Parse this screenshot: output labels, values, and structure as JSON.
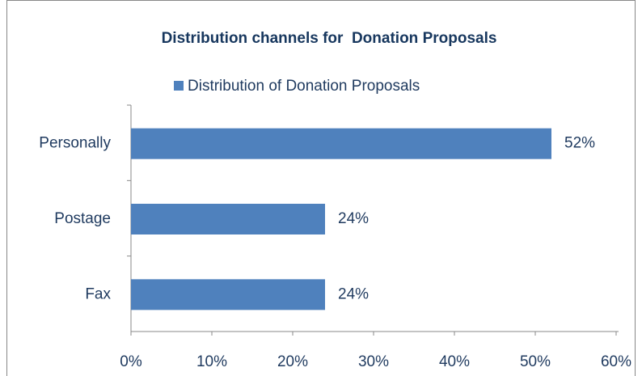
{
  "chart_data": {
    "type": "bar",
    "orientation": "horizontal",
    "title": "Distribution channels for  Donation Proposals",
    "categories": [
      "Personally",
      "Postage",
      "Fax"
    ],
    "series": [
      {
        "name": "Distribution of Donation Proposals",
        "color": "#4f81bd",
        "values": [
          52,
          24,
          24
        ],
        "value_labels": [
          "52%",
          "24%",
          "24%"
        ]
      }
    ],
    "xlim": [
      0,
      60
    ],
    "xticks": [
      {
        "value": 0,
        "label": "0%"
      },
      {
        "value": 10,
        "label": "10%"
      },
      {
        "value": 20,
        "label": "20%"
      },
      {
        "value": 30,
        "label": "30%"
      },
      {
        "value": 40,
        "label": "40%"
      },
      {
        "value": 50,
        "label": "50%"
      },
      {
        "value": 60,
        "label": "60%"
      }
    ],
    "legend": "top",
    "grid": false
  }
}
